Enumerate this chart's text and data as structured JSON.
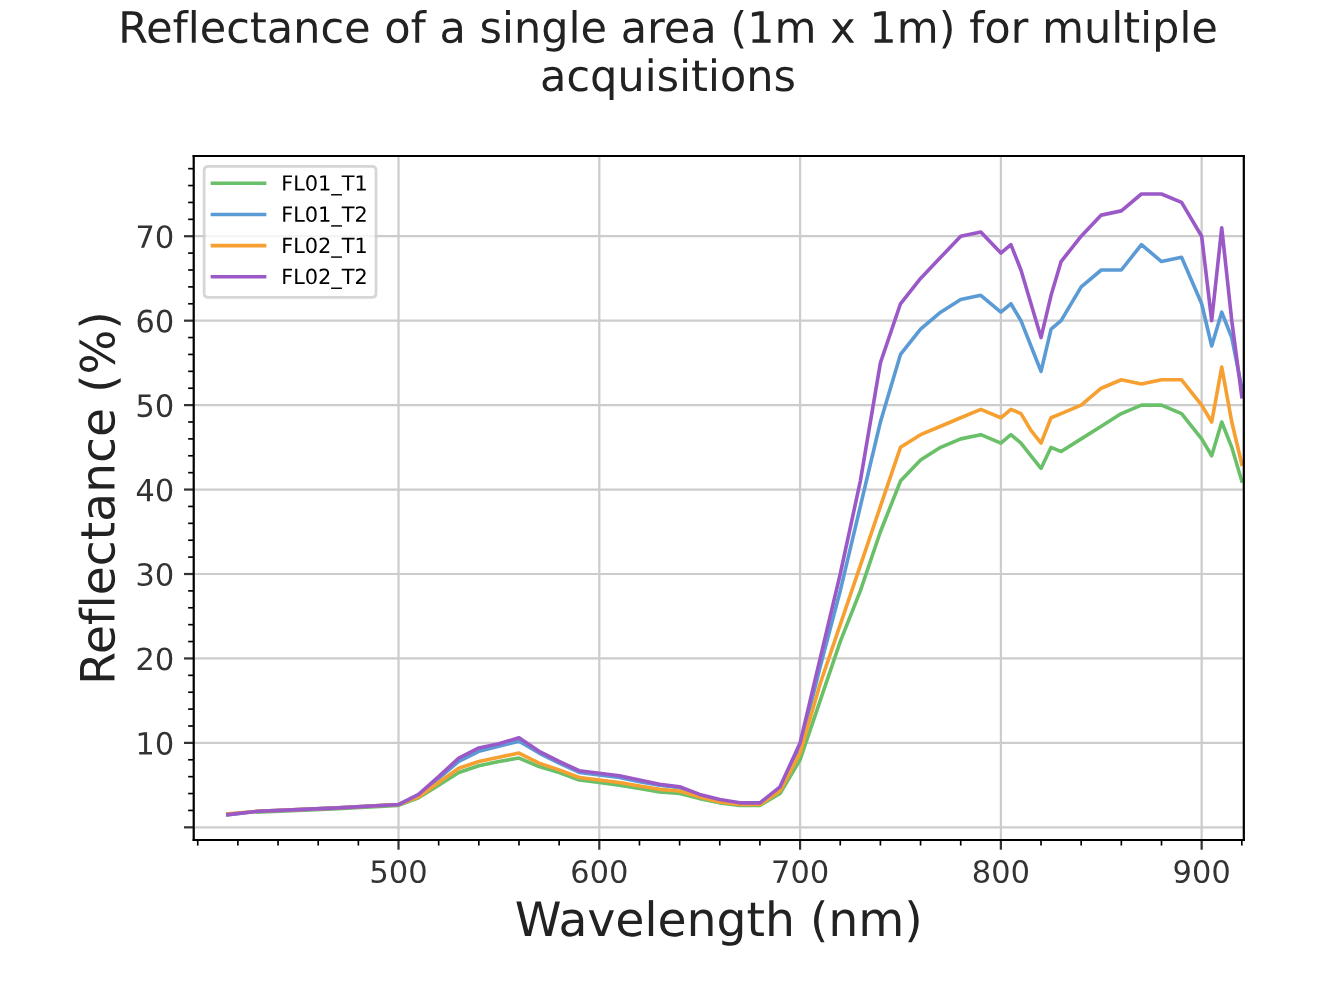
{
  "chart_data": {
    "type": "line",
    "title": "Reflectance of a single area (1m x 1m) for multiple acquisitions",
    "xlabel": "Wavelength (nm)",
    "ylabel": "Reflectance (%)",
    "xlim": [
      398,
      921
    ],
    "xticks": [
      500,
      600,
      700,
      800,
      900
    ],
    "ylim": [
      -1.5,
      79.5
    ],
    "yticks": [
      {
        "value": 0,
        "label": null
      },
      10,
      20,
      30,
      40,
      50,
      60,
      70
    ],
    "grid": true,
    "legend": "top left",
    "marker": "none",
    "line_style": "solid",
    "x": [
      415,
      430,
      450,
      470,
      500,
      510,
      520,
      530,
      540,
      550,
      560,
      570,
      580,
      590,
      600,
      610,
      620,
      630,
      640,
      650,
      660,
      670,
      680,
      690,
      700,
      710,
      720,
      730,
      740,
      750,
      760,
      770,
      780,
      790,
      800,
      805,
      810,
      815,
      820,
      825,
      830,
      840,
      850,
      860,
      870,
      880,
      890,
      900,
      905,
      910,
      915,
      920
    ],
    "series": [
      {
        "name": "FL01_T1",
        "color": "#6abf69",
        "values": [
          null,
          1.8,
          2.0,
          2.2,
          2.6,
          3.5,
          5.0,
          6.5,
          7.3,
          7.8,
          8.2,
          7.2,
          6.5,
          5.6,
          5.3,
          5.0,
          4.6,
          4.2,
          4.0,
          3.4,
          2.9,
          2.6,
          2.6,
          4.0,
          8.0,
          15.0,
          22.0,
          28.0,
          35.0,
          41.0,
          43.5,
          45.0,
          46.0,
          46.5,
          45.5,
          46.5,
          45.5,
          44.0,
          42.5,
          45.0,
          44.5,
          46.0,
          47.5,
          49.0,
          50.0,
          50.0,
          49.0,
          46.0,
          44.0,
          48.0,
          45.0,
          41.0
        ]
      },
      {
        "name": "FL01_T2",
        "color": "#5b9bd5",
        "values": [
          1.5,
          1.9,
          2.1,
          2.3,
          2.7,
          3.8,
          5.8,
          7.8,
          9.0,
          9.6,
          10.2,
          8.8,
          7.6,
          6.5,
          6.2,
          5.9,
          5.4,
          5.0,
          4.7,
          3.8,
          3.2,
          2.8,
          2.8,
          4.6,
          9.5,
          19.0,
          28.0,
          38.0,
          48.0,
          56.0,
          59.0,
          61.0,
          62.5,
          63.0,
          61.0,
          62.0,
          60.0,
          57.0,
          54.0,
          59.0,
          60.0,
          64.0,
          66.0,
          66.0,
          69.0,
          67.0,
          67.5,
          62.0,
          57.0,
          61.0,
          58.0,
          52.0
        ]
      },
      {
        "name": "FL02_T1",
        "color": "#f5a031",
        "values": [
          1.6,
          1.9,
          2.1,
          2.3,
          2.7,
          3.6,
          5.3,
          7.0,
          7.8,
          8.3,
          8.8,
          7.6,
          6.8,
          5.9,
          5.6,
          5.3,
          4.9,
          4.5,
          4.3,
          3.6,
          3.0,
          2.7,
          2.7,
          4.3,
          8.8,
          17.0,
          24.0,
          31.0,
          38.0,
          45.0,
          46.5,
          47.5,
          48.5,
          49.5,
          48.5,
          49.5,
          49.0,
          47.0,
          45.5,
          48.5,
          49.0,
          50.0,
          52.0,
          53.0,
          52.5,
          53.0,
          53.0,
          50.0,
          48.0,
          54.5,
          48.0,
          43.0
        ]
      },
      {
        "name": "FL02_T2",
        "color": "#9b59c8",
        "values": [
          1.5,
          1.9,
          2.1,
          2.3,
          2.7,
          3.9,
          6.0,
          8.2,
          9.4,
          9.9,
          10.6,
          9.0,
          7.8,
          6.7,
          6.4,
          6.1,
          5.6,
          5.1,
          4.8,
          3.9,
          3.3,
          2.9,
          2.9,
          4.8,
          10.0,
          20.0,
          30.0,
          41.0,
          55.0,
          62.0,
          65.0,
          67.5,
          70.0,
          70.5,
          68.0,
          69.0,
          66.0,
          62.0,
          58.0,
          63.0,
          67.0,
          70.0,
          72.5,
          73.0,
          75.0,
          75.0,
          74.0,
          70.0,
          60.0,
          71.0,
          60.0,
          51.0
        ]
      }
    ]
  }
}
